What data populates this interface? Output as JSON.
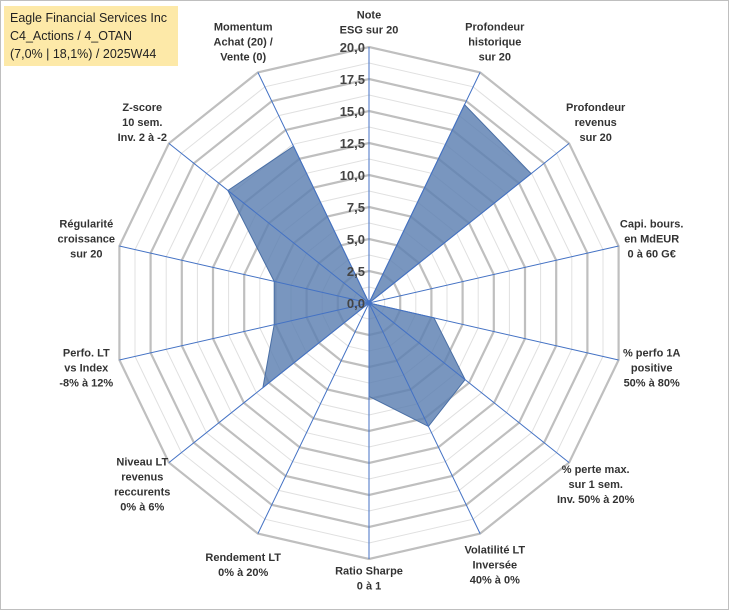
{
  "chart_data": {
    "type": "radar",
    "title": [
      "Eagle Financial Services Inc",
      "C4_Actions / 4_OTAN",
      "(7,0% | 18,1%) / 2025W44"
    ],
    "rmin": 0,
    "rmax": 20,
    "ticks": [
      "0,0",
      "2,5",
      "5,0",
      "7,5",
      "10,0",
      "12,5",
      "15,0",
      "17,5",
      "20,0"
    ],
    "tick_values": [
      0,
      2.5,
      5,
      7.5,
      10,
      12.5,
      15,
      17.5,
      20
    ],
    "minor_step": 1.25,
    "axes": [
      {
        "label": [
          "Note",
          "ESG sur 20"
        ],
        "value": 0
      },
      {
        "label": [
          "Profondeur",
          "historique",
          "sur 20"
        ],
        "value": 17.2
      },
      {
        "label": [
          "Profondeur",
          "revenus",
          "sur 20"
        ],
        "value": 16.2
      },
      {
        "label": [
          "Capi. bours.",
          "en MdEUR",
          "0 à 60 G€"
        ],
        "value": 0
      },
      {
        "label": [
          "% perfo 1A",
          "positive",
          "50% à 80%"
        ],
        "value": 5.2
      },
      {
        "label": [
          "% perte max.",
          "sur 1 sem.",
          "Inv. 50% à 20%"
        ],
        "value": 9.6
      },
      {
        "label": [
          "Volatilité LT",
          "Inversée",
          "40% à 0%"
        ],
        "value": 10.7
      },
      {
        "label": [
          "Ratio Sharpe",
          "0 à 1"
        ],
        "value": 7.3
      },
      {
        "label": [
          "Rendement LT",
          "0% à 20%"
        ],
        "value": 0
      },
      {
        "label": [
          "Niveau LT",
          "revenus",
          "reccurents",
          "0% à 6%"
        ],
        "value": 10.6
      },
      {
        "label": [
          "Perfo. LT",
          "vs Index",
          "-8% à 12%"
        ],
        "value": 7.6
      },
      {
        "label": [
          "Régularité",
          "croissance",
          "sur 20"
        ],
        "value": 7.6
      },
      {
        "label": [
          "Z-score",
          "10 sem.",
          "Inv. 2 à -2"
        ],
        "value": 14.1
      },
      {
        "label": [
          "Momentum",
          "Achat (20) /",
          "Vente (0)"
        ],
        "value": 13.6
      }
    ],
    "colors": {
      "fill": "#5b7fb1",
      "stroke": "#4a6fa5",
      "spoke": "#4472c4",
      "major_grid": "#bfbfbf",
      "minor_grid": "#e0e0e0"
    }
  }
}
